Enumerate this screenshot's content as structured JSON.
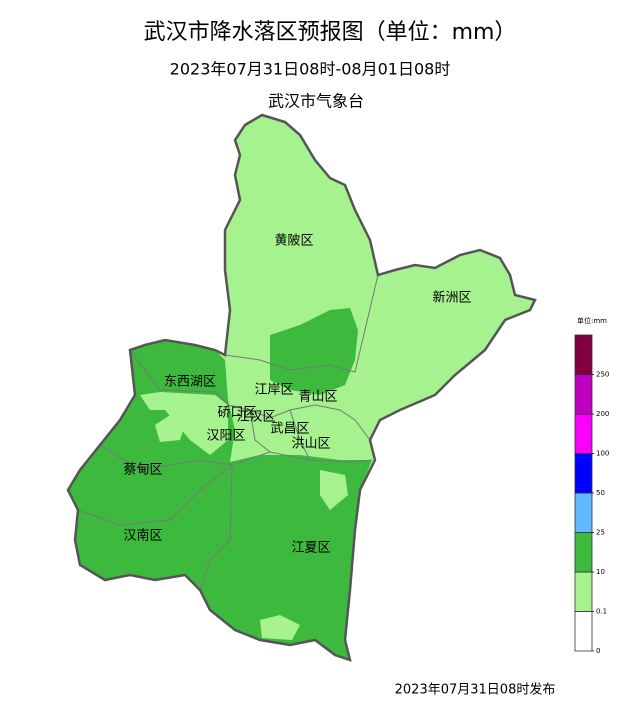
{
  "header": {
    "title": "武汉市降水落区预报图（单位：mm）",
    "subtitle": "2023年07月31日08时-08月01日08时",
    "issuer": "武汉市气象台"
  },
  "districts": [
    {
      "label": "黄陂区"
    },
    {
      "label": "新洲区"
    },
    {
      "label": "东西湖区"
    },
    {
      "label": "江岸区"
    },
    {
      "label": "青山区"
    },
    {
      "label": "硚口区"
    },
    {
      "label": "江汉区"
    },
    {
      "label": "汉阳区"
    },
    {
      "label": "武昌区"
    },
    {
      "label": "洪山区"
    },
    {
      "label": "蔡甸区"
    },
    {
      "label": "汉南区"
    },
    {
      "label": "江夏区"
    }
  ],
  "legend": {
    "title": "单位:mm",
    "ticks": [
      0,
      0.1,
      10,
      25,
      50,
      100,
      200,
      250
    ],
    "colors": [
      "#ffffff",
      "#a6f28f",
      "#3dba3d",
      "#61b8ff",
      "#0000ff",
      "#fa00fa",
      "#c000c0",
      "#800040"
    ]
  },
  "footer": "2023年07月31日08时发布"
}
